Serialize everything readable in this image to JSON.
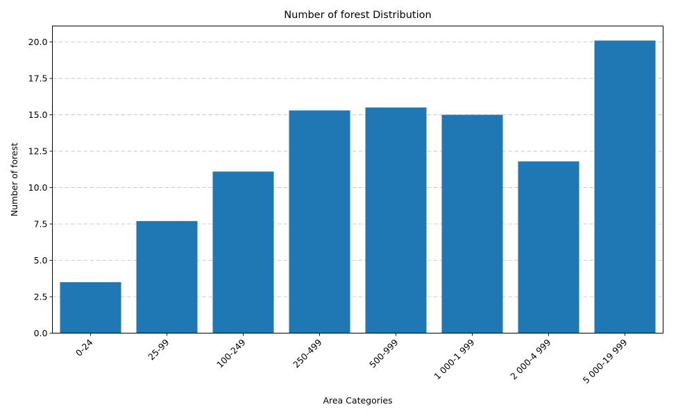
{
  "chart_data": {
    "type": "bar",
    "title": "Number of forest Distribution",
    "xlabel": "Area Categories",
    "ylabel": "Number of forest",
    "categories": [
      "0-24",
      "25-99",
      "100-249",
      "250-499",
      "500-999",
      "1 000-1 999",
      "2 000-4 999",
      "5 000-19 999"
    ],
    "values": [
      3.5,
      7.7,
      11.1,
      15.3,
      15.5,
      15.0,
      11.8,
      20.1
    ],
    "ylim": [
      0,
      21.1
    ],
    "yticks": [
      "0.0",
      "2.5",
      "5.0",
      "7.5",
      "10.0",
      "12.5",
      "15.0",
      "17.5",
      "20.0"
    ],
    "grid": "y-dashed",
    "bar_color": "#1f77b4"
  }
}
